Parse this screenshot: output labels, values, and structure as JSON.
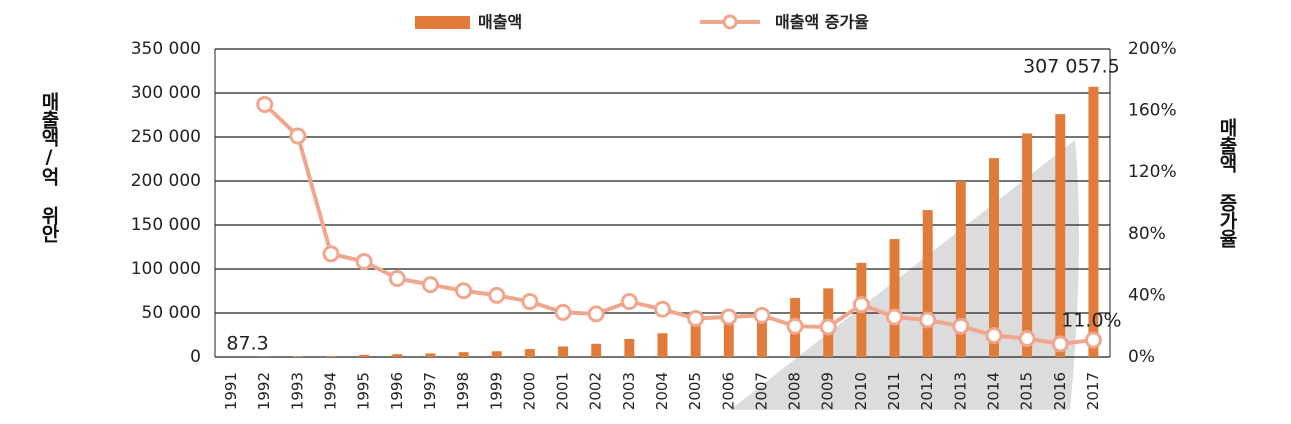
{
  "chart_data": {
    "type": "bar",
    "categories": [
      "1991",
      "1992",
      "1993",
      "1994",
      "1995",
      "1996",
      "1997",
      "1998",
      "1999",
      "2000",
      "2001",
      "2002",
      "2003",
      "2004",
      "2005",
      "2006",
      "2007",
      "2008",
      "2009",
      "2010",
      "2011",
      "2012",
      "2013",
      "2014",
      "2015",
      "2016",
      "2017"
    ],
    "series": [
      {
        "name": "매출액",
        "type": "bar",
        "color": "#e07b39",
        "values": [
          87.3,
          200,
          500,
          1000,
          2500,
          3200,
          4000,
          5500,
          6500,
          9000,
          12000,
          15000,
          20500,
          27000,
          36000,
          48000,
          50000,
          67000,
          78000,
          107000,
          134000,
          167000,
          200000,
          226000,
          254000,
          276000,
          307057.5
        ],
        "value_labels": [
          "87.3",
          null,
          null,
          null,
          null,
          null,
          null,
          null,
          null,
          null,
          null,
          null,
          null,
          null,
          null,
          null,
          null,
          null,
          null,
          null,
          null,
          null,
          null,
          null,
          null,
          null,
          "307 057.5"
        ]
      },
      {
        "name": "매출액 증가율",
        "type": "line",
        "axis": "y2",
        "color": "#f0a68c",
        "values": [
          null,
          164,
          143.5,
          67,
          62,
          51,
          47,
          43,
          40,
          36,
          29,
          28,
          36,
          31,
          25,
          26,
          27,
          20,
          19.5,
          34,
          26,
          24,
          20,
          14,
          12,
          8.5,
          11.0
        ],
        "value_labels": [
          null,
          null,
          null,
          null,
          null,
          null,
          null,
          null,
          null,
          null,
          null,
          null,
          null,
          null,
          null,
          null,
          null,
          null,
          null,
          null,
          null,
          null,
          null,
          null,
          null,
          null,
          "11.0%"
        ]
      }
    ],
    "ylabel": "매출액/억 위안",
    "y2label": "매출액 증가율",
    "ylim": [
      0,
      350000
    ],
    "yticks": [
      0,
      {
        "value": 50000,
        "label": "50 000"
      },
      {
        "value": 100000,
        "label": "100 000"
      },
      {
        "value": 150000,
        "label": "150 000"
      },
      {
        "value": 200000,
        "label": "200 000"
      },
      {
        "value": 250000,
        "label": "250 000"
      },
      {
        "value": 300000,
        "label": "300 000"
      },
      {
        "value": 350000,
        "label": "350 000"
      }
    ],
    "y2lim": [
      0,
      200
    ],
    "y2ticks": [
      {
        "value": 0,
        "label": "0%"
      },
      {
        "value": 40,
        "label": "40%"
      },
      {
        "value": 80,
        "label": "80%"
      },
      {
        "value": 120,
        "label": "120%"
      },
      {
        "value": 160,
        "label": "160%"
      },
      {
        "value": 200,
        "label": "200%"
      }
    ],
    "grid": true,
    "legend": "top"
  }
}
